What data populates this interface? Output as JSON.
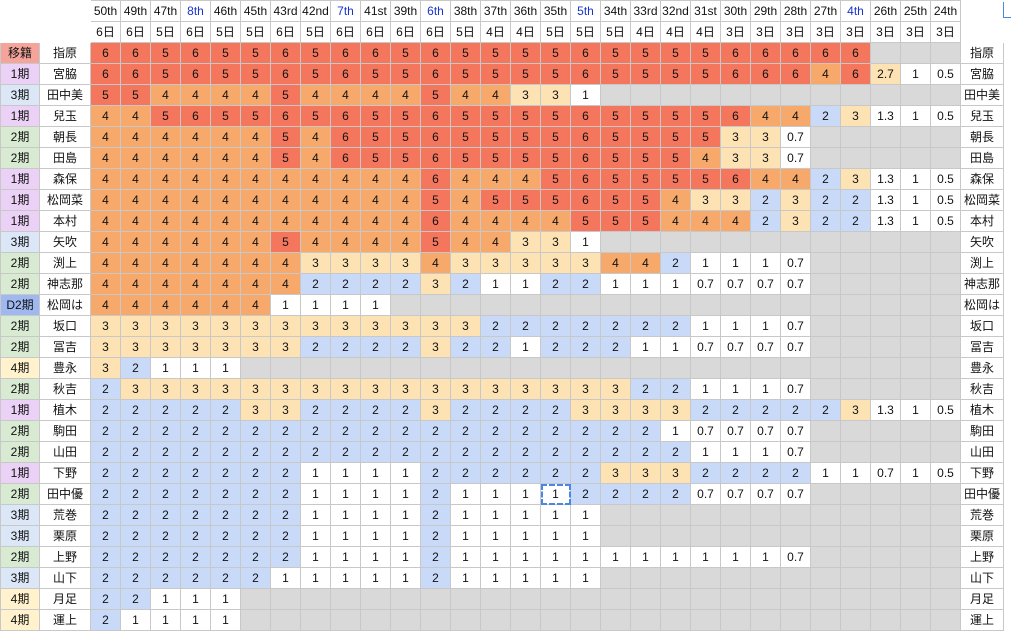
{
  "sheet": {
    "palette": {
      "6": "#f4765d",
      "5": "#f4765d",
      "4": "#f6a96a",
      "3": "#fde3b4",
      "2": "#c9daf8",
      "1": "#ffffff",
      "0": "#ffffff",
      "empty": "#d9d9d9",
      "special": "#fde3b4",
      "header_blue": "#1a34c8",
      "select": "#4a86e8"
    },
    "columns": [
      {
        "label": "50th",
        "days": "6日",
        "blue": false
      },
      {
        "label": "49th",
        "days": "6日",
        "blue": false
      },
      {
        "label": "47th",
        "days": "5日",
        "blue": false
      },
      {
        "label": "8th",
        "days": "6日",
        "blue": true
      },
      {
        "label": "46th",
        "days": "5日",
        "blue": false
      },
      {
        "label": "45th",
        "days": "5日",
        "blue": false
      },
      {
        "label": "43rd",
        "days": "6日",
        "blue": false
      },
      {
        "label": "42nd",
        "days": "5日",
        "blue": false
      },
      {
        "label": "7th",
        "days": "6日",
        "blue": true
      },
      {
        "label": "41st",
        "days": "6日",
        "blue": false
      },
      {
        "label": "39th",
        "days": "6日",
        "blue": false
      },
      {
        "label": "6th",
        "days": "6日",
        "blue": true
      },
      {
        "label": "38th",
        "days": "5日",
        "blue": false
      },
      {
        "label": "37th",
        "days": "4日",
        "blue": false
      },
      {
        "label": "36th",
        "days": "4日",
        "blue": false
      },
      {
        "label": "35th",
        "days": "5日",
        "blue": false
      },
      {
        "label": "5th",
        "days": "5日",
        "blue": true
      },
      {
        "label": "34th",
        "days": "5日",
        "blue": false
      },
      {
        "label": "33rd",
        "days": "4日",
        "blue": false
      },
      {
        "label": "32nd",
        "days": "4日",
        "blue": false
      },
      {
        "label": "31st",
        "days": "4日",
        "blue": false
      },
      {
        "label": "30th",
        "days": "3日",
        "blue": false
      },
      {
        "label": "29th",
        "days": "3日",
        "blue": false
      },
      {
        "label": "28th",
        "days": "3日",
        "blue": false
      },
      {
        "label": "27th",
        "days": "3日",
        "blue": false
      },
      {
        "label": "4th",
        "days": "3日",
        "blue": true
      },
      {
        "label": "26th",
        "days": "3日",
        "blue": false
      },
      {
        "label": "25th",
        "days": "3日",
        "blue": false
      },
      {
        "label": "24th",
        "days": "3日",
        "blue": false
      }
    ],
    "rows": [
      {
        "gen": "移籍",
        "gen_color": "#f4a49b",
        "name": "指原",
        "values": [
          "6",
          "6",
          "5",
          "6",
          "5",
          "5",
          "6",
          "5",
          "6",
          "6",
          "5",
          "6",
          "5",
          "5",
          "5",
          "5",
          "6",
          "5",
          "5",
          "5",
          "5",
          "6",
          "6",
          "6",
          "6",
          "6",
          "",
          "",
          ""
        ]
      },
      {
        "gen": "1期",
        "gen_color": "#ead1f5",
        "name": "宮脇",
        "values": [
          "6",
          "6",
          "5",
          "6",
          "5",
          "5",
          "6",
          "5",
          "6",
          "5",
          "5",
          "6",
          "5",
          "5",
          "5",
          "5",
          "6",
          "5",
          "5",
          "5",
          "5",
          "6",
          "6",
          "6",
          "4",
          "6",
          "2.7",
          "1",
          "0.5"
        ]
      },
      {
        "gen": "3期",
        "gen_color": "#dbe7f7",
        "name": "田中美",
        "values": [
          "5",
          "5",
          "4",
          "4",
          "4",
          "4",
          "5",
          "4",
          "4",
          "4",
          "4",
          "5",
          "4",
          "4",
          "3",
          "3",
          "1",
          "",
          "",
          "",
          "",
          "",
          "",
          "",
          "",
          "",
          "",
          "",
          ""
        ]
      },
      {
        "gen": "1期",
        "gen_color": "#ead1f5",
        "name": "兒玉",
        "values": [
          "4",
          "4",
          "5",
          "6",
          "5",
          "5",
          "6",
          "5",
          "6",
          "5",
          "5",
          "6",
          "5",
          "5",
          "5",
          "5",
          "6",
          "5",
          "5",
          "5",
          "5",
          "6",
          "4",
          "4",
          "2",
          "3",
          "1.3",
          "1",
          "0.5"
        ]
      },
      {
        "gen": "2期",
        "gen_color": "#d9ead3",
        "name": "朝長",
        "values": [
          "4",
          "4",
          "4",
          "4",
          "4",
          "4",
          "5",
          "4",
          "6",
          "5",
          "5",
          "6",
          "5",
          "5",
          "5",
          "5",
          "6",
          "5",
          "5",
          "5",
          "5",
          "3",
          "3",
          "0.7",
          "",
          "",
          "",
          "",
          ""
        ]
      },
      {
        "gen": "2期",
        "gen_color": "#d9ead3",
        "name": "田島",
        "values": [
          "4",
          "4",
          "4",
          "4",
          "4",
          "4",
          "5",
          "4",
          "6",
          "5",
          "5",
          "6",
          "5",
          "5",
          "5",
          "5",
          "6",
          "5",
          "5",
          "5",
          "4",
          "3",
          "3",
          "0.7",
          "",
          "",
          "",
          "",
          ""
        ]
      },
      {
        "gen": "1期",
        "gen_color": "#ead1f5",
        "name": "森保",
        "values": [
          "4",
          "4",
          "4",
          "4",
          "4",
          "4",
          "4",
          "4",
          "4",
          "4",
          "4",
          "6",
          "4",
          "4",
          "4",
          "5",
          "6",
          "5",
          "5",
          "5",
          "5",
          "6",
          "4",
          "4",
          "2",
          "3",
          "1.3",
          "1",
          "0.5"
        ]
      },
      {
        "gen": "1期",
        "gen_color": "#ead1f5",
        "name": "松岡菜",
        "values": [
          "4",
          "4",
          "4",
          "4",
          "4",
          "4",
          "4",
          "4",
          "4",
          "4",
          "4",
          "5",
          "4",
          "5",
          "5",
          "5",
          "6",
          "5",
          "5",
          "4",
          "3",
          "3",
          "2",
          "3",
          "2",
          "2",
          "1.3",
          "1",
          "0.5"
        ]
      },
      {
        "gen": "1期",
        "gen_color": "#ead1f5",
        "name": "本村",
        "values": [
          "4",
          "4",
          "4",
          "4",
          "4",
          "4",
          "4",
          "4",
          "4",
          "4",
          "4",
          "6",
          "4",
          "4",
          "4",
          "4",
          "5",
          "5",
          "5",
          "4",
          "4",
          "4",
          "2",
          "3",
          "2",
          "2",
          "1.3",
          "1",
          "0.5"
        ]
      },
      {
        "gen": "3期",
        "gen_color": "#dbe7f7",
        "name": "矢吹",
        "values": [
          "4",
          "4",
          "4",
          "4",
          "4",
          "4",
          "5",
          "4",
          "4",
          "4",
          "4",
          "5",
          "4",
          "4",
          "3",
          "3",
          "1",
          "",
          "",
          "",
          "",
          "",
          "",
          "",
          "",
          "",
          "",
          "",
          ""
        ]
      },
      {
        "gen": "2期",
        "gen_color": "#d9ead3",
        "name": "渕上",
        "values": [
          "4",
          "4",
          "4",
          "4",
          "4",
          "4",
          "4",
          "3",
          "3",
          "3",
          "3",
          "4",
          "3",
          "3",
          "3",
          "3",
          "3",
          "4",
          "4",
          "2",
          "1",
          "1",
          "1",
          "0.7",
          "",
          "",
          "",
          "",
          ""
        ]
      },
      {
        "gen": "2期",
        "gen_color": "#d9ead3",
        "name": "神志那",
        "values": [
          "4",
          "4",
          "4",
          "4",
          "4",
          "4",
          "4",
          "2",
          "2",
          "2",
          "2",
          "3",
          "2",
          "1",
          "1",
          "2",
          "2",
          "1",
          "1",
          "1",
          "0.7",
          "0.7",
          "0.7",
          "0.7",
          "",
          "",
          "",
          "",
          ""
        ]
      },
      {
        "gen": "D2期",
        "gen_color": "#9fb8f0",
        "name": "松岡は",
        "values": [
          "4",
          "4",
          "4",
          "4",
          "4",
          "4",
          "1",
          "1",
          "1",
          "1",
          "",
          "",
          "",
          "",
          "",
          "",
          "",
          "",
          "",
          "",
          "",
          "",
          "",
          "",
          "",
          "",
          "",
          "",
          ""
        ]
      },
      {
        "gen": "2期",
        "gen_color": "#d9ead3",
        "name": "坂口",
        "values": [
          "3",
          "3",
          "3",
          "3",
          "3",
          "3",
          "3",
          "3",
          "3",
          "3",
          "3",
          "3",
          "3",
          "2",
          "2",
          "2",
          "2",
          "2",
          "2",
          "2",
          "1",
          "1",
          "1",
          "0.7",
          "",
          "",
          "",
          "",
          ""
        ]
      },
      {
        "gen": "2期",
        "gen_color": "#d9ead3",
        "name": "冨吉",
        "values": [
          "3",
          "3",
          "3",
          "3",
          "3",
          "3",
          "3",
          "2",
          "2",
          "2",
          "2",
          "3",
          "2",
          "2",
          "1",
          "2",
          "2",
          "2",
          "1",
          "1",
          "0.7",
          "0.7",
          "0.7",
          "0.7",
          "",
          "",
          "",
          "",
          ""
        ]
      },
      {
        "gen": "4期",
        "gen_color": "#fff2cc",
        "name": "豊永",
        "values": [
          "3",
          "2",
          "1",
          "1",
          "1",
          "",
          "",
          "",
          "",
          "",
          "",
          "",
          "",
          "",
          "",
          "",
          "",
          "",
          "",
          "",
          "",
          "",
          "",
          "",
          "",
          "",
          "",
          "",
          ""
        ]
      },
      {
        "gen": "2期",
        "gen_color": "#d9ead3",
        "name": "秋吉",
        "values": [
          "2",
          "3",
          "3",
          "3",
          "3",
          "3",
          "3",
          "3",
          "3",
          "3",
          "3",
          "3",
          "3",
          "3",
          "3",
          "3",
          "3",
          "3",
          "2",
          "2",
          "1",
          "1",
          "1",
          "0.7",
          "",
          "",
          "",
          "",
          ""
        ]
      },
      {
        "gen": "1期",
        "gen_color": "#ead1f5",
        "name": "植木",
        "values": [
          "2",
          "2",
          "2",
          "2",
          "2",
          "3",
          "3",
          "2",
          "2",
          "2",
          "2",
          "3",
          "2",
          "2",
          "2",
          "2",
          "3",
          "3",
          "3",
          "3",
          "2",
          "2",
          "2",
          "2",
          "2",
          "3",
          "1.3",
          "1",
          "0.5"
        ]
      },
      {
        "gen": "2期",
        "gen_color": "#d9ead3",
        "name": "駒田",
        "values": [
          "2",
          "2",
          "2",
          "2",
          "2",
          "2",
          "2",
          "2",
          "2",
          "2",
          "2",
          "2",
          "2",
          "2",
          "2",
          "2",
          "2",
          "2",
          "2",
          "1",
          "0.7",
          "0.7",
          "0.7",
          "0.7",
          "",
          "",
          "",
          "",
          ""
        ]
      },
      {
        "gen": "2期",
        "gen_color": "#d9ead3",
        "name": "山田",
        "values": [
          "2",
          "2",
          "2",
          "2",
          "2",
          "2",
          "2",
          "2",
          "2",
          "2",
          "2",
          "2",
          "2",
          "2",
          "2",
          "2",
          "2",
          "2",
          "2",
          "2",
          "1",
          "1",
          "1",
          "0.7",
          "",
          "",
          "",
          "",
          ""
        ]
      },
      {
        "gen": "1期",
        "gen_color": "#ead1f5",
        "name": "下野",
        "values": [
          "2",
          "2",
          "2",
          "2",
          "2",
          "2",
          "2",
          "1",
          "1",
          "1",
          "1",
          "2",
          "2",
          "2",
          "2",
          "2",
          "2",
          "3",
          "3",
          "3",
          "2",
          "2",
          "2",
          "2",
          "1",
          "1",
          "0.7",
          "1",
          "0.5"
        ]
      },
      {
        "gen": "2期",
        "gen_color": "#d9ead3",
        "name": "田中優",
        "values": [
          "2",
          "2",
          "2",
          "2",
          "2",
          "2",
          "2",
          "1",
          "1",
          "1",
          "1",
          "2",
          "1",
          "1",
          "1",
          "1",
          "2",
          "2",
          "2",
          "2",
          "0.7",
          "0.7",
          "0.7",
          "0.7",
          "",
          "",
          "",
          "",
          ""
        ]
      },
      {
        "gen": "3期",
        "gen_color": "#dbe7f7",
        "name": "荒巻",
        "values": [
          "2",
          "2",
          "2",
          "2",
          "2",
          "2",
          "2",
          "1",
          "1",
          "1",
          "1",
          "2",
          "1",
          "1",
          "1",
          "1",
          "1",
          "",
          "",
          "",
          "",
          "",
          "",
          "",
          "",
          "",
          "",
          "",
          ""
        ]
      },
      {
        "gen": "3期",
        "gen_color": "#dbe7f7",
        "name": "栗原",
        "values": [
          "2",
          "2",
          "2",
          "2",
          "2",
          "2",
          "2",
          "1",
          "1",
          "1",
          "1",
          "2",
          "1",
          "1",
          "1",
          "1",
          "1",
          "",
          "",
          "",
          "",
          "",
          "",
          "",
          "",
          "",
          "",
          "",
          ""
        ]
      },
      {
        "gen": "2期",
        "gen_color": "#d9ead3",
        "name": "上野",
        "values": [
          "2",
          "2",
          "2",
          "2",
          "2",
          "2",
          "2",
          "1",
          "1",
          "1",
          "1",
          "2",
          "1",
          "1",
          "1",
          "1",
          "1",
          "1",
          "1",
          "1",
          "1",
          "1",
          "1",
          "0.7",
          "",
          "",
          "",
          "",
          ""
        ]
      },
      {
        "gen": "3期",
        "gen_color": "#dbe7f7",
        "name": "山下",
        "values": [
          "2",
          "2",
          "2",
          "2",
          "2",
          "2",
          "1",
          "1",
          "1",
          "1",
          "1",
          "2",
          "1",
          "1",
          "1",
          "1",
          "1",
          "",
          "",
          "",
          "",
          "",
          "",
          "",
          "",
          "",
          "",
          "",
          ""
        ]
      },
      {
        "gen": "4期",
        "gen_color": "#fff2cc",
        "name": "月足",
        "values": [
          "2",
          "2",
          "1",
          "1",
          "1",
          "",
          "",
          "",
          "",
          "",
          "",
          "",
          "",
          "",
          "",
          "",
          "",
          "",
          "",
          "",
          "",
          "",
          "",
          "",
          "",
          "",
          "",
          "",
          ""
        ]
      },
      {
        "gen": "4期",
        "gen_color": "#fff2cc",
        "name": "運上",
        "values": [
          "2",
          "1",
          "1",
          "1",
          "1",
          "",
          "",
          "",
          "",
          "",
          "",
          "",
          "",
          "",
          "",
          "",
          "",
          "",
          "",
          "",
          "",
          "",
          "",
          "",
          "",
          "",
          "",
          "",
          ""
        ]
      }
    ],
    "selected": {
      "row": 21,
      "col": 15
    }
  }
}
